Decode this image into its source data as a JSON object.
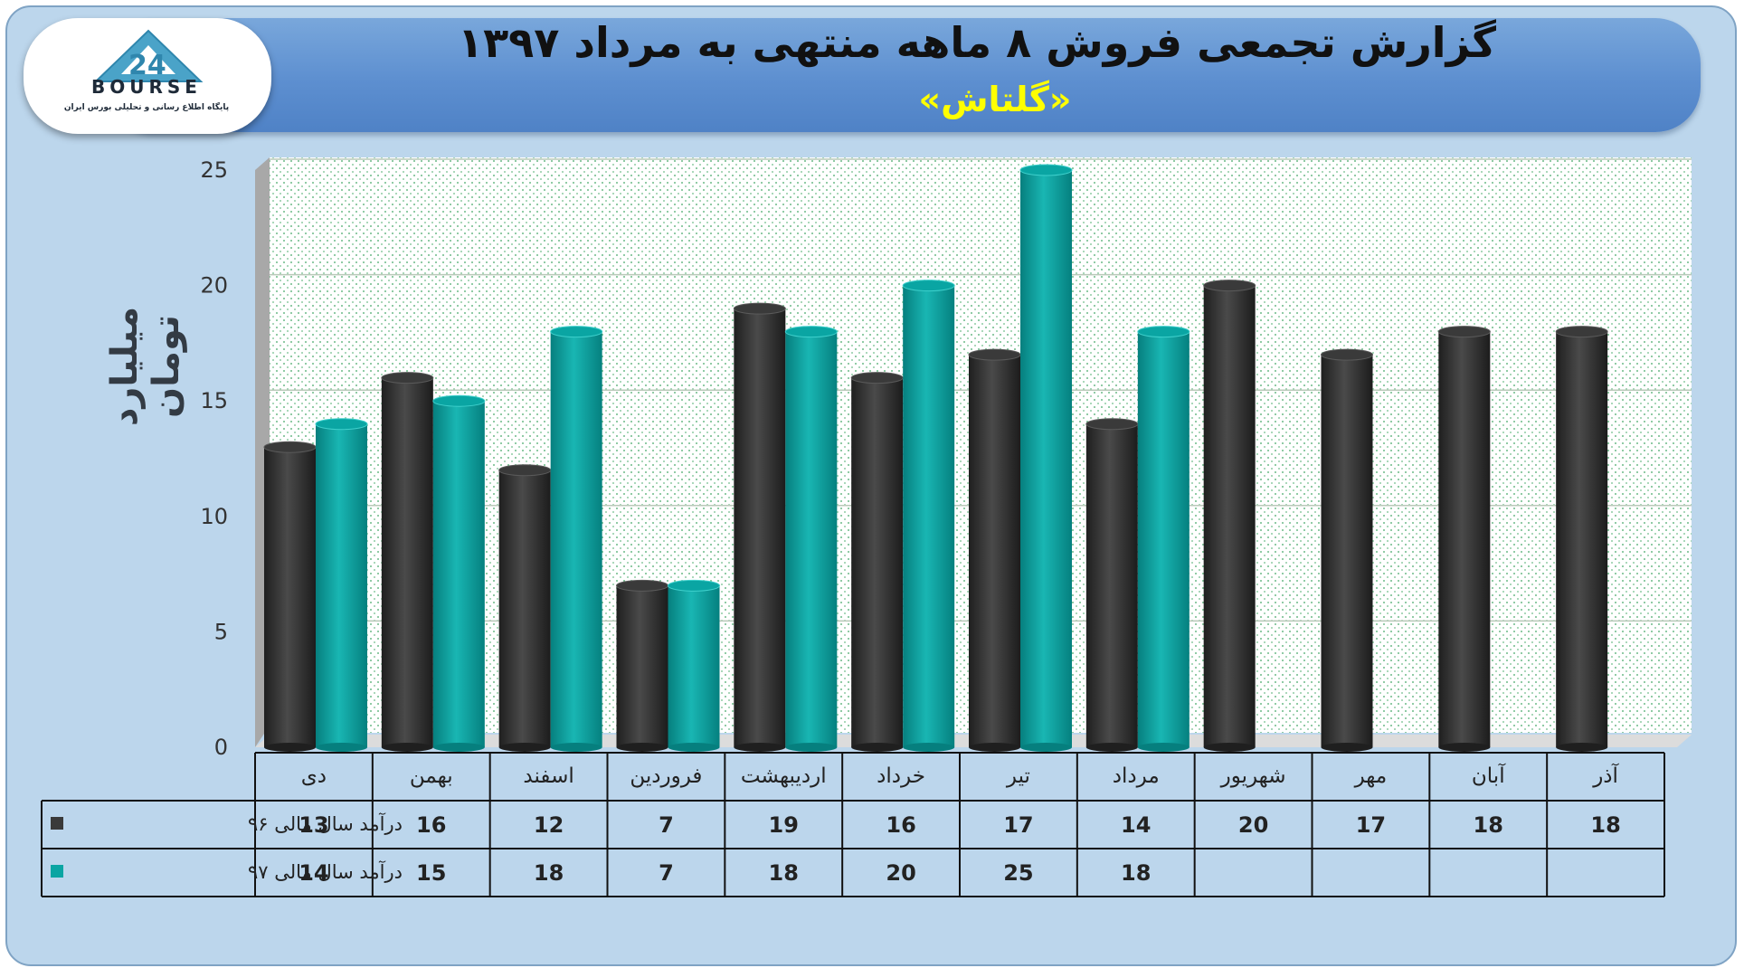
{
  "header": {
    "title": "گزارش تجمعی فروش ۸ ماهه منتهی به مرداد ۱۳۹۷",
    "subtitle": "«گلتاش»"
  },
  "logo": {
    "word": "BOURSE",
    "tagline": "پایگاه اطلاع رسانی و تحلیلی بورس ایران"
  },
  "colors": {
    "series_96": "#3a3a3a",
    "series_97": "#0aa5a3",
    "frame": "#bcd6ec",
    "header": "#5d8fd0",
    "title_text": "#111111",
    "subtitle_text": "#ffff00"
  },
  "chart_data": {
    "type": "bar",
    "title": "گزارش تجمعی فروش ۸ ماهه منتهی به مرداد ۱۳۹۷",
    "subtitle": "«گلتاش»",
    "ylabel": "میلیارد تومان",
    "xlabel": "",
    "ylim": [
      0,
      25
    ],
    "yticks": [
      0,
      5,
      10,
      15,
      20,
      25
    ],
    "grid": true,
    "legend": "table-left",
    "categories": [
      "دی",
      "بهمن",
      "اسفند",
      "فروردین",
      "اردیبهشت",
      "خرداد",
      "تیر",
      "مرداد",
      "شهریور",
      "مهر",
      "آبان",
      "آذر"
    ],
    "series": [
      {
        "name": "درآمد سال مالی ۹۶",
        "values": [
          13,
          16,
          12,
          7,
          19,
          16,
          17,
          14,
          20,
          17,
          18,
          18
        ]
      },
      {
        "name": "درآمد سال مالی ۹۷",
        "values": [
          14,
          15,
          18,
          7,
          18,
          20,
          25,
          18,
          null,
          null,
          null,
          null
        ]
      }
    ]
  }
}
